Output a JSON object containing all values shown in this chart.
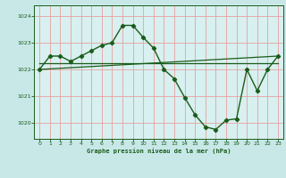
{
  "title": "Graphe pression niveau de la mer (hPa)",
  "bg_color": "#c8e8e8",
  "plot_bg_color": "#d8f0f0",
  "grid_color": "#e8a0a0",
  "line_color": "#1a5c1a",
  "fig_width": 3.2,
  "fig_height": 2.0,
  "dpi": 100,
  "xlim": [
    -0.5,
    23.5
  ],
  "ylim": [
    1019.4,
    1024.4
  ],
  "yticks": [
    1020,
    1021,
    1022,
    1023,
    1024
  ],
  "xticks": [
    0,
    1,
    2,
    3,
    4,
    5,
    6,
    7,
    8,
    9,
    10,
    11,
    12,
    13,
    14,
    15,
    16,
    17,
    18,
    19,
    20,
    21,
    22,
    23
  ],
  "series_main": {
    "x": [
      0,
      1,
      2,
      3,
      4,
      5,
      6,
      7,
      8,
      9,
      10,
      11,
      12,
      13,
      14,
      15,
      16,
      17,
      18,
      19,
      20,
      21,
      22,
      23
    ],
    "y": [
      1022.0,
      1022.5,
      1022.5,
      1022.3,
      1022.5,
      1022.7,
      1022.9,
      1023.0,
      1023.65,
      1023.65,
      1023.2,
      1022.8,
      1022.0,
      1021.65,
      1020.95,
      1020.3,
      1019.85,
      1019.75,
      1020.1,
      1020.15,
      1022.0,
      1021.2,
      1022.0,
      1022.5
    ],
    "linewidth": 1.0,
    "markersize": 2.2
  },
  "series_horiz": {
    "x": [
      0,
      23
    ],
    "y": [
      1022.25,
      1022.25
    ],
    "linewidth": 0.9
  },
  "series_diag": {
    "x": [
      0,
      23
    ],
    "y": [
      1022.0,
      1022.5
    ],
    "linewidth": 0.9
  }
}
